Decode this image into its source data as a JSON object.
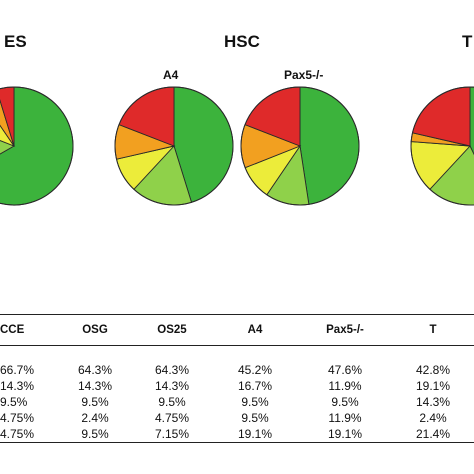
{
  "figure": {
    "groups": [
      {
        "label": "ES"
      },
      {
        "label": "HSC"
      },
      {
        "label": "T"
      }
    ]
  },
  "chart_data": {
    "type": "pie",
    "colors": [
      "#3cb33c",
      "#8fd14a",
      "#ecec3a",
      "#f2a020",
      "#df2a2a"
    ],
    "pies": [
      {
        "name": "",
        "group": "ES",
        "values": [
          66.7,
          14.3,
          9.5,
          4.75,
          4.75
        ]
      },
      {
        "name": "A4",
        "group": "HSC",
        "values": [
          45.2,
          16.7,
          9.5,
          9.5,
          19.1
        ]
      },
      {
        "name": "Pax5-/-",
        "group": "HSC",
        "values": [
          47.6,
          11.9,
          9.5,
          11.9,
          19.1
        ]
      },
      {
        "name": "",
        "group": "T",
        "values": [
          42.8,
          19.1,
          14.3,
          2.4,
          21.4
        ]
      }
    ]
  },
  "table": {
    "headers": [
      "CCE",
      "OSG",
      "OS25",
      "A4",
      "Pax5-/-",
      "T"
    ],
    "rows": [
      [
        "66.7%",
        "64.3%",
        "64.3%",
        "45.2%",
        "47.6%",
        "42.8%"
      ],
      [
        "14.3%",
        "14.3%",
        "14.3%",
        "16.7%",
        "11.9%",
        "19.1%"
      ],
      [
        "9.5%",
        "9.5%",
        "9.5%",
        "9.5%",
        "9.5%",
        "14.3%"
      ],
      [
        "4.75%",
        "2.4%",
        "4.75%",
        "9.5%",
        "11.9%",
        "2.4%"
      ],
      [
        "4.75%",
        "9.5%",
        "7.15%",
        "19.1%",
        "19.1%",
        "21.4%"
      ]
    ]
  }
}
